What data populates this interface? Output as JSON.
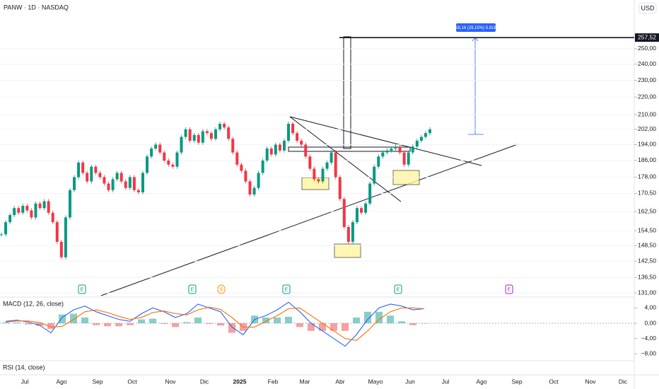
{
  "header": {
    "title": "PANW · 1D · NASDAQ",
    "currency": "USD"
  },
  "chart_data": [
    {
      "type": "candlestick",
      "closes": [
        153,
        158,
        161,
        164,
        162,
        165,
        163,
        160,
        166,
        164,
        167,
        162,
        158,
        150,
        144,
        160,
        172,
        178,
        185,
        180,
        176,
        183,
        180,
        178,
        175,
        172,
        177,
        180,
        176,
        173,
        178,
        172,
        171,
        180,
        188,
        192,
        194,
        190,
        186,
        184,
        183,
        190,
        198,
        202,
        196,
        199,
        195,
        201,
        200,
        197,
        202,
        205,
        203,
        197,
        190,
        184,
        181,
        176,
        170,
        173,
        180,
        186,
        192,
        189,
        194,
        191,
        196,
        205,
        200,
        196,
        194,
        188,
        182,
        177,
        176,
        182,
        185,
        190,
        178,
        168,
        156,
        150,
        158,
        164,
        162,
        166,
        175,
        183,
        188,
        190,
        191,
        192,
        193,
        190,
        184,
        190,
        193,
        196,
        198,
        200,
        202
      ],
      "ylim": [
        129.6,
        274
      ],
      "log_scale": true,
      "yticks": [
        {
          "value": 131,
          "label": "131,00"
        },
        {
          "value": 136.5,
          "label": "136,50"
        },
        {
          "value": 142.5,
          "label": "142,50"
        },
        {
          "value": 148.5,
          "label": "148,50"
        },
        {
          "value": 154.5,
          "label": "154,50"
        },
        {
          "value": 162.5,
          "label": "162,50"
        },
        {
          "value": 170.5,
          "label": "170,50"
        },
        {
          "value": 178,
          "label": "178,00"
        },
        {
          "value": 186,
          "label": "186,00"
        },
        {
          "value": 194,
          "label": "194,00"
        },
        {
          "value": 202,
          "label": "202,00"
        },
        {
          "value": 210,
          "label": "210,00"
        },
        {
          "value": 220,
          "label": "220,00"
        },
        {
          "value": 230,
          "label": "230,00"
        },
        {
          "value": 240,
          "label": "240,00"
        },
        {
          "value": 250,
          "label": "250,00"
        }
      ],
      "level": {
        "value": 257.52,
        "label": "257,52"
      },
      "up_color": "#089981",
      "down_color": "#f23645",
      "measure_label": "58,16 (29,15%) 5.816",
      "events": [
        "E",
        "E",
        "$",
        "E",
        "E",
        "E"
      ],
      "categories": [
        "Jul",
        "Ago",
        "Sep",
        "Oct",
        "Nov",
        "Dic",
        "2025",
        "Feb",
        "Mar",
        "Abr",
        "Mayo",
        "Jun",
        "Jul",
        "Ago",
        "Sep",
        "Oct",
        "Nov",
        "Dic"
      ]
    },
    {
      "type": "macd",
      "title": "MACD (12, 26, close)",
      "macd": [
        0.5,
        0.8,
        0.3,
        -0.5,
        -2.5,
        1.5,
        3.5,
        4.5,
        3,
        2,
        1,
        0.5,
        2.5,
        4,
        3,
        1.5,
        2.5,
        5,
        4,
        3,
        -1,
        -3,
        1,
        2,
        3.5,
        5.5,
        3,
        0,
        -2,
        -4,
        -6,
        -3,
        1,
        4,
        5,
        4.5,
        3.5,
        3.8
      ],
      "signal": [
        0.3,
        0.6,
        0.6,
        0.2,
        -1,
        -0.8,
        1,
        3,
        3.5,
        2.8,
        1.8,
        1,
        1.5,
        2.8,
        3.2,
        2.5,
        2.2,
        3.5,
        4.2,
        3.6,
        1.5,
        -1,
        -1,
        0.5,
        2,
        3.8,
        4,
        2,
        0,
        -2,
        -4,
        -4.5,
        -2,
        1,
        3,
        4,
        4,
        3.8
      ],
      "histogram": [
        0.2,
        0.2,
        -0.3,
        -0.7,
        -1.5,
        2.3,
        2.5,
        1.5,
        -0.5,
        -0.8,
        -0.8,
        -0.5,
        1,
        1.2,
        -0.2,
        -1,
        0.3,
        1.5,
        -0.2,
        -0.6,
        -2.5,
        -2,
        2,
        1.5,
        1.5,
        1.7,
        -1,
        -2,
        -2,
        -2,
        -2,
        1.5,
        3,
        3,
        2,
        0.5,
        -0.5,
        0
      ],
      "macd_color": "#2962ff",
      "signal_color": "#ff6d00",
      "ylim": [
        -9.8,
        6.85
      ],
      "yticks": [
        {
          "value": 4,
          "label": "4,00"
        },
        {
          "value": 0,
          "label": "0,00"
        },
        {
          "value": -4,
          "label": "−4,00"
        },
        {
          "value": -8,
          "label": "−8,00"
        }
      ]
    },
    {
      "type": "rsi",
      "title": "RSI (14, close)"
    }
  ]
}
